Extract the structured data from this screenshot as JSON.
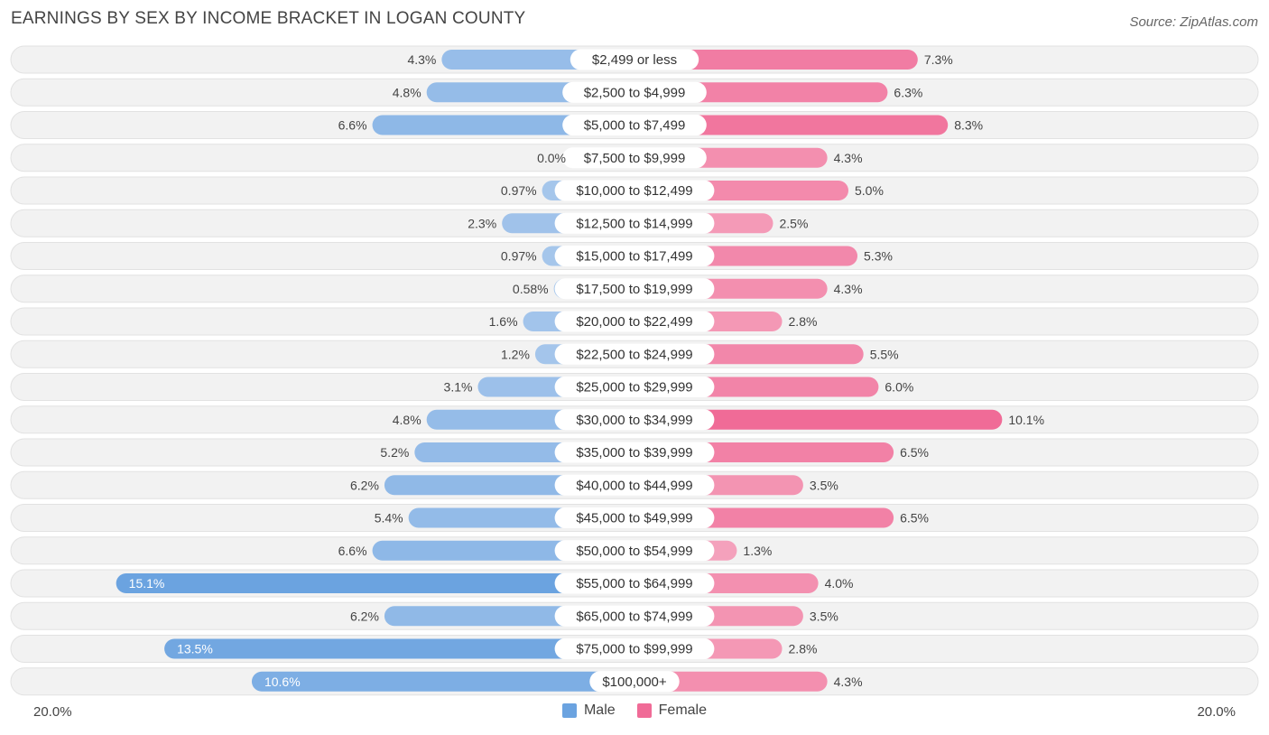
{
  "title": "EARNINGS BY SEX BY INCOME BRACKET IN LOGAN COUNTY",
  "source": "Source: ZipAtlas.com",
  "colors": {
    "male": "#6ba3e0",
    "male_light": "#a9c8ec",
    "female": "#f06b97",
    "female_light": "#f5a9c1"
  },
  "chart_data": {
    "type": "bar",
    "orientation": "horizontal-diverging",
    "title": "EARNINGS BY SEX BY INCOME BRACKET IN LOGAN COUNTY",
    "categories": [
      "$2,499 or less",
      "$2,500 to $4,999",
      "$5,000 to $7,499",
      "$7,500 to $9,999",
      "$10,000 to $12,499",
      "$12,500 to $14,999",
      "$15,000 to $17,499",
      "$17,500 to $19,999",
      "$20,000 to $22,499",
      "$22,500 to $24,999",
      "$25,000 to $29,999",
      "$30,000 to $34,999",
      "$35,000 to $39,999",
      "$40,000 to $44,999",
      "$45,000 to $49,999",
      "$50,000 to $54,999",
      "$55,000 to $64,999",
      "$65,000 to $74,999",
      "$75,000 to $99,999",
      "$100,000+"
    ],
    "series": [
      {
        "name": "Male",
        "values": [
          4.3,
          4.8,
          6.6,
          0.0,
          0.97,
          2.3,
          0.97,
          0.58,
          1.6,
          1.2,
          3.1,
          4.8,
          5.2,
          6.2,
          5.4,
          6.6,
          15.1,
          6.2,
          13.5,
          10.6
        ],
        "labels": [
          "4.3%",
          "4.8%",
          "6.6%",
          "0.0%",
          "0.97%",
          "2.3%",
          "0.97%",
          "0.58%",
          "1.6%",
          "1.2%",
          "3.1%",
          "4.8%",
          "5.2%",
          "6.2%",
          "5.4%",
          "6.6%",
          "15.1%",
          "6.2%",
          "13.5%",
          "10.6%"
        ]
      },
      {
        "name": "Female",
        "values": [
          7.3,
          6.3,
          8.3,
          4.3,
          5.0,
          2.5,
          5.3,
          4.3,
          2.8,
          5.5,
          6.0,
          10.1,
          6.5,
          3.5,
          6.5,
          1.3,
          4.0,
          3.5,
          2.8,
          4.3
        ],
        "labels": [
          "7.3%",
          "6.3%",
          "8.3%",
          "4.3%",
          "5.0%",
          "2.5%",
          "5.3%",
          "4.3%",
          "2.8%",
          "5.5%",
          "6.0%",
          "10.1%",
          "6.5%",
          "3.5%",
          "6.5%",
          "1.3%",
          "4.0%",
          "3.5%",
          "2.8%",
          "4.3%"
        ]
      }
    ],
    "xlim": [
      -20,
      20
    ],
    "axis_min_label": "20.0%",
    "axis_max_label": "20.0%",
    "legend": [
      "Male",
      "Female"
    ]
  }
}
